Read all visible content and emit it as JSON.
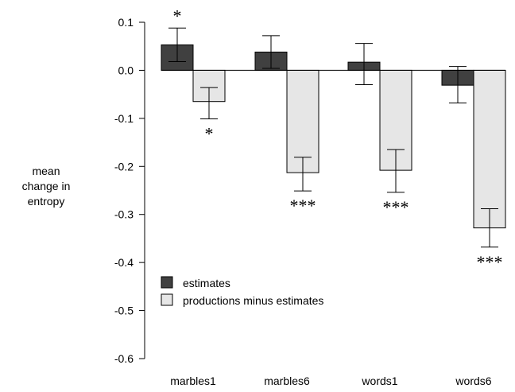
{
  "chart_data": {
    "type": "bar",
    "ylabel": "mean\nchange in\nentropy",
    "ylim": [
      -0.6,
      0.1
    ],
    "yticks": [
      0.1,
      0.0,
      -0.1,
      -0.2,
      -0.3,
      -0.4,
      -0.5,
      -0.6
    ],
    "ytick_labels": [
      "0.1",
      "0.0",
      "-0.1",
      "-0.2",
      "-0.3",
      "-0.4",
      "-0.5",
      "-0.6"
    ],
    "categories": [
      "marbles1",
      "marbles6",
      "words1",
      "words6"
    ],
    "legend_position": "lower-left",
    "grid": false,
    "series": [
      {
        "name": "estimates",
        "color": "#404040",
        "values": [
          0.053,
          0.038,
          0.017,
          -0.031
        ],
        "error_low": [
          0.018,
          0.004,
          -0.03,
          -0.068
        ],
        "error_high": [
          0.088,
          0.072,
          0.056,
          0.008
        ],
        "significance": [
          "*",
          "",
          "",
          ""
        ]
      },
      {
        "name": "productions minus estimates",
        "color": "#e6e6e6",
        "values": [
          -0.065,
          -0.213,
          -0.208,
          -0.328
        ],
        "error_low": [
          -0.101,
          -0.251,
          -0.254,
          -0.368
        ],
        "error_high": [
          -0.036,
          -0.181,
          -0.165,
          -0.288
        ],
        "significance": [
          "*",
          "***",
          "***",
          "***"
        ]
      }
    ]
  }
}
